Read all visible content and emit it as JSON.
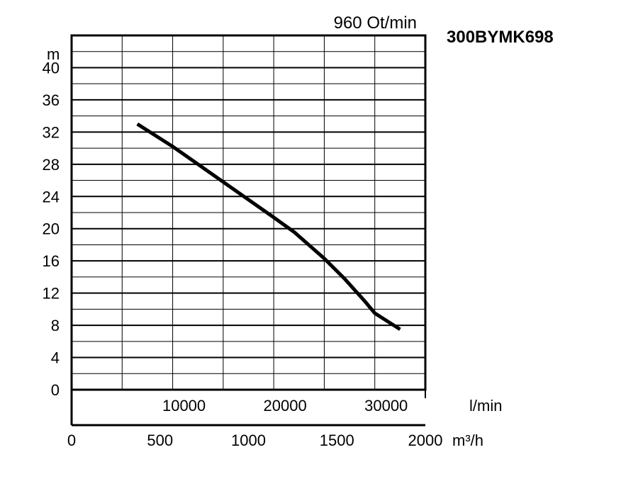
{
  "chart_data": {
    "type": "line",
    "title": "960 Ot/min",
    "model": "300BYMK698",
    "ylabel": "m",
    "x_unit_primary": "l/min",
    "x_unit_secondary": "m³/h",
    "xlim_lmin": [
      0,
      35000
    ],
    "ylim": [
      0,
      44
    ],
    "grid": true,
    "y_ticks": [
      "0",
      "4",
      "8",
      "12",
      "16",
      "20",
      "24",
      "28",
      "32",
      "36",
      "40"
    ],
    "x_ticks_lmin": [
      "10000",
      "20000",
      "30000"
    ],
    "x_ticks_m3h": [
      "0",
      "500",
      "1000",
      "1500",
      "2000"
    ],
    "series": [
      {
        "name": "",
        "x_lmin": [
          6500,
          10000,
          15000,
          20000,
          22000,
          25000,
          27000,
          29000,
          30000,
          32500
        ],
        "y": [
          33,
          30.2,
          25.8,
          21.4,
          19.6,
          16.3,
          13.8,
          11.0,
          9.5,
          7.5
        ]
      }
    ]
  }
}
